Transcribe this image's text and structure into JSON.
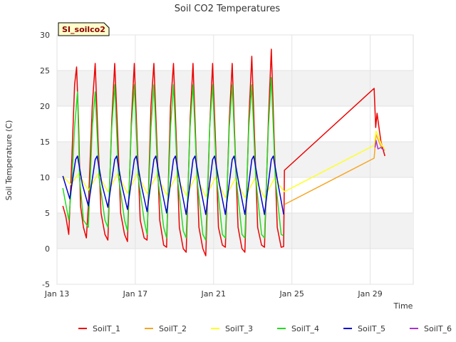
{
  "chart_data": {
    "type": "line",
    "title": "Soil CO2 Temperatures",
    "xlabel": "Time",
    "ylabel": "Soil Temperature (C)",
    "badge": "SI_soilco2",
    "ylim": [
      -5,
      30
    ],
    "yticks": [
      -5,
      0,
      5,
      10,
      15,
      20,
      25,
      30
    ],
    "xlim": [
      0,
      18.2
    ],
    "x_unit": "days after Jan 13",
    "xticks": [
      {
        "label": "Jan 13",
        "value": 0
      },
      {
        "label": "Jan 17",
        "value": 4
      },
      {
        "label": "Jan 21",
        "value": 8
      },
      {
        "label": "Jan 25",
        "value": 12
      },
      {
        "label": "Jan 29",
        "value": 16
      }
    ],
    "grid": true,
    "legend_position": "bottom",
    "series": [
      {
        "name": "SoilT_1",
        "color": "#ee0000",
        "points": [
          [
            0.3,
            6
          ],
          [
            0.45,
            4.5
          ],
          [
            0.6,
            2
          ],
          [
            0.75,
            12
          ],
          [
            0.9,
            23
          ],
          [
            1.0,
            25.5
          ],
          [
            1.1,
            18
          ],
          [
            1.2,
            6
          ],
          [
            1.35,
            3
          ],
          [
            1.5,
            1.5
          ],
          [
            1.6,
            6
          ],
          [
            1.8,
            20
          ],
          [
            1.95,
            26
          ],
          [
            2.1,
            15
          ],
          [
            2.25,
            5
          ],
          [
            2.45,
            2
          ],
          [
            2.6,
            1.2
          ],
          [
            2.8,
            18
          ],
          [
            2.95,
            26
          ],
          [
            3.1,
            16
          ],
          [
            3.25,
            5
          ],
          [
            3.45,
            2
          ],
          [
            3.6,
            1
          ],
          [
            3.8,
            18
          ],
          [
            3.95,
            26
          ],
          [
            4.1,
            15
          ],
          [
            4.25,
            4
          ],
          [
            4.45,
            1.5
          ],
          [
            4.6,
            1.2
          ],
          [
            4.8,
            20
          ],
          [
            4.95,
            26
          ],
          [
            5.1,
            15
          ],
          [
            5.25,
            4
          ],
          [
            5.45,
            0.5
          ],
          [
            5.6,
            0.2
          ],
          [
            5.8,
            20
          ],
          [
            5.95,
            26
          ],
          [
            6.1,
            15
          ],
          [
            6.25,
            3
          ],
          [
            6.45,
            0
          ],
          [
            6.6,
            -0.5
          ],
          [
            6.8,
            18
          ],
          [
            6.95,
            26
          ],
          [
            7.1,
            14
          ],
          [
            7.25,
            3
          ],
          [
            7.45,
            0
          ],
          [
            7.6,
            -1
          ],
          [
            7.8,
            17
          ],
          [
            7.95,
            26
          ],
          [
            8.1,
            15
          ],
          [
            8.25,
            3
          ],
          [
            8.45,
            0.5
          ],
          [
            8.6,
            0.2
          ],
          [
            8.8,
            18
          ],
          [
            8.95,
            26
          ],
          [
            9.1,
            14
          ],
          [
            9.25,
            3
          ],
          [
            9.45,
            0
          ],
          [
            9.6,
            -0.5
          ],
          [
            9.8,
            18
          ],
          [
            9.95,
            27
          ],
          [
            10.1,
            15
          ],
          [
            10.25,
            3
          ],
          [
            10.45,
            0.5
          ],
          [
            10.6,
            0.2
          ],
          [
            10.8,
            18
          ],
          [
            10.95,
            28
          ],
          [
            11.1,
            15
          ],
          [
            11.25,
            3
          ],
          [
            11.45,
            0.2
          ],
          [
            11.58,
            0.3
          ],
          [
            11.62,
            11
          ],
          [
            16.2,
            22.5
          ],
          [
            16.28,
            17
          ],
          [
            16.35,
            19
          ],
          [
            16.45,
            17
          ],
          [
            16.55,
            15
          ],
          [
            16.65,
            14
          ],
          [
            16.75,
            13
          ]
        ]
      },
      {
        "name": "SoilT_2",
        "color": "#f5a623",
        "points": [
          [
            11.62,
            6.2
          ],
          [
            16.2,
            12.7
          ],
          [
            16.3,
            16
          ],
          [
            16.45,
            15
          ],
          [
            16.6,
            14
          ],
          [
            16.75,
            13.8
          ]
        ]
      },
      {
        "name": "SoilT_3",
        "color": "#ffff22",
        "points": [
          [
            0.3,
            10.2
          ],
          [
            0.7,
            9
          ],
          [
            1.1,
            10.5
          ],
          [
            1.6,
            8.2
          ],
          [
            2.1,
            10.5
          ],
          [
            2.6,
            8
          ],
          [
            3.1,
            10.5
          ],
          [
            3.6,
            7.8
          ],
          [
            4.1,
            10.5
          ],
          [
            4.6,
            7.8
          ],
          [
            5.1,
            10.3
          ],
          [
            5.6,
            7.6
          ],
          [
            6.1,
            10.2
          ],
          [
            6.6,
            7.5
          ],
          [
            7.1,
            10.2
          ],
          [
            7.6,
            7.3
          ],
          [
            8.1,
            10
          ],
          [
            8.6,
            7.2
          ],
          [
            9.1,
            9.8
          ],
          [
            9.6,
            7.2
          ],
          [
            10.1,
            9.8
          ],
          [
            10.6,
            7.2
          ],
          [
            11.1,
            9.8
          ],
          [
            11.62,
            8
          ],
          [
            16.2,
            14.5
          ],
          [
            16.3,
            16.5
          ],
          [
            16.45,
            15.5
          ],
          [
            16.6,
            14.5
          ],
          [
            16.75,
            14
          ]
        ]
      },
      {
        "name": "SoilT_4",
        "color": "#22dd22",
        "points": [
          [
            0.3,
            8.5
          ],
          [
            0.6,
            4
          ],
          [
            0.75,
            9
          ],
          [
            0.9,
            17
          ],
          [
            1.05,
            22
          ],
          [
            1.15,
            10
          ],
          [
            1.35,
            4
          ],
          [
            1.6,
            3
          ],
          [
            1.8,
            17
          ],
          [
            1.95,
            22
          ],
          [
            2.15,
            10
          ],
          [
            2.45,
            4
          ],
          [
            2.6,
            3
          ],
          [
            2.8,
            17
          ],
          [
            2.95,
            23
          ],
          [
            3.15,
            10
          ],
          [
            3.45,
            4
          ],
          [
            3.6,
            2.5
          ],
          [
            3.8,
            17
          ],
          [
            3.95,
            23
          ],
          [
            4.15,
            10
          ],
          [
            4.45,
            4
          ],
          [
            4.6,
            2
          ],
          [
            4.8,
            17
          ],
          [
            4.95,
            23
          ],
          [
            5.15,
            10
          ],
          [
            5.45,
            3
          ],
          [
            5.6,
            1.5
          ],
          [
            5.8,
            17
          ],
          [
            5.95,
            23
          ],
          [
            6.15,
            10
          ],
          [
            6.45,
            2.5
          ],
          [
            6.6,
            1.5
          ],
          [
            6.8,
            17
          ],
          [
            6.95,
            23
          ],
          [
            7.15,
            10
          ],
          [
            7.45,
            2
          ],
          [
            7.6,
            1.2
          ],
          [
            7.8,
            17
          ],
          [
            7.95,
            23
          ],
          [
            8.15,
            10
          ],
          [
            8.45,
            2
          ],
          [
            8.6,
            1.5
          ],
          [
            8.8,
            17
          ],
          [
            8.95,
            23
          ],
          [
            9.15,
            10
          ],
          [
            9.45,
            2
          ],
          [
            9.6,
            1.5
          ],
          [
            9.8,
            17
          ],
          [
            9.95,
            23
          ],
          [
            10.15,
            10
          ],
          [
            10.45,
            2
          ],
          [
            10.6,
            1.5
          ],
          [
            10.8,
            17
          ],
          [
            10.95,
            24
          ],
          [
            11.15,
            10
          ],
          [
            11.45,
            2
          ],
          [
            11.58,
            1.8
          ]
        ]
      },
      {
        "name": "SoilT_5",
        "color": "#0000cc",
        "points": [
          [
            0.3,
            10.2
          ],
          [
            0.65,
            7
          ],
          [
            0.95,
            12.5
          ],
          [
            1.05,
            13
          ],
          [
            1.3,
            9
          ],
          [
            1.6,
            6
          ],
          [
            1.95,
            12.5
          ],
          [
            2.05,
            13
          ],
          [
            2.3,
            9
          ],
          [
            2.6,
            5.8
          ],
          [
            2.95,
            12.5
          ],
          [
            3.05,
            13
          ],
          [
            3.3,
            9
          ],
          [
            3.6,
            5.5
          ],
          [
            3.95,
            12.5
          ],
          [
            4.05,
            13
          ],
          [
            4.3,
            9
          ],
          [
            4.6,
            5.2
          ],
          [
            4.95,
            12.5
          ],
          [
            5.05,
            13
          ],
          [
            5.3,
            9
          ],
          [
            5.6,
            5
          ],
          [
            5.95,
            12.5
          ],
          [
            6.05,
            13
          ],
          [
            6.3,
            9
          ],
          [
            6.6,
            4.8
          ],
          [
            6.95,
            12.5
          ],
          [
            7.05,
            13
          ],
          [
            7.3,
            9
          ],
          [
            7.6,
            4.8
          ],
          [
            7.95,
            12.5
          ],
          [
            8.05,
            13
          ],
          [
            8.3,
            9
          ],
          [
            8.6,
            4.8
          ],
          [
            8.95,
            12.5
          ],
          [
            9.05,
            13
          ],
          [
            9.3,
            9
          ],
          [
            9.6,
            4.8
          ],
          [
            9.95,
            12.5
          ],
          [
            10.05,
            13
          ],
          [
            10.3,
            9
          ],
          [
            10.6,
            4.8
          ],
          [
            10.95,
            12.5
          ],
          [
            11.05,
            13
          ],
          [
            11.3,
            9
          ],
          [
            11.58,
            4.8
          ]
        ]
      },
      {
        "name": "SoilT_6",
        "color": "#aa33cc",
        "points": [
          [
            16.25,
            14.2
          ],
          [
            16.3,
            15.2
          ],
          [
            16.4,
            14
          ],
          [
            16.55,
            14.2
          ],
          [
            16.7,
            13.8
          ]
        ]
      }
    ]
  }
}
